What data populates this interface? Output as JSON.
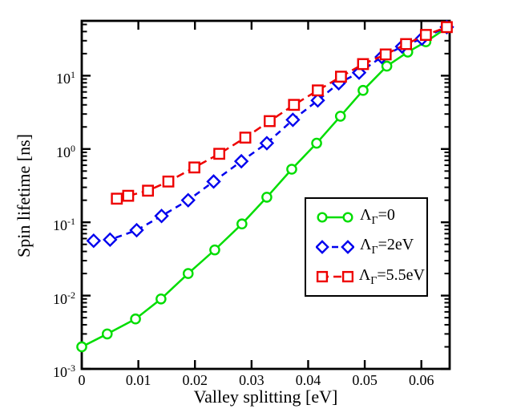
{
  "figure": {
    "background": "#ffffff"
  },
  "chart_data": {
    "type": "line",
    "title": "",
    "xlabel": "Valley splitting [eV]",
    "ylabel": "Spin lifetime [ns]",
    "xlim": [
      0,
      0.065
    ],
    "ylim": [
      0.001,
      56
    ],
    "yscale": "log",
    "xscale": "linear",
    "grid": false,
    "frame_color": "#000000",
    "x_ticks": {
      "values": [
        0,
        0.01,
        0.02,
        0.03,
        0.04,
        0.05,
        0.06
      ],
      "labels": [
        "0",
        "0.01",
        "0.02",
        "0.03",
        "0.04",
        "0.05",
        "0.06"
      ]
    },
    "y_ticks": {
      "base": "10",
      "exponents": [
        -3,
        -2,
        -1,
        0,
        1
      ]
    },
    "legend": {
      "position": "inside-bottom-right"
    },
    "series": [
      {
        "id": "lambda-0",
        "color": "#00dd00",
        "marker": "circle",
        "dash": "",
        "label_parts": [
          {
            "t": "Λ"
          },
          {
            "t": "Γ",
            "sub": true
          },
          {
            "t": "=0"
          }
        ],
        "points": [
          [
            0.0,
            0.002
          ],
          [
            0.0045,
            0.003
          ],
          [
            0.0095,
            0.0048
          ],
          [
            0.014,
            0.009
          ],
          [
            0.0188,
            0.02
          ],
          [
            0.0235,
            0.042
          ],
          [
            0.0283,
            0.095
          ],
          [
            0.0327,
            0.22
          ],
          [
            0.0371,
            0.53
          ],
          [
            0.0415,
            1.2
          ],
          [
            0.0457,
            2.8
          ],
          [
            0.0497,
            6.3
          ],
          [
            0.0539,
            13.5
          ],
          [
            0.0576,
            21
          ],
          [
            0.0608,
            29
          ],
          [
            0.0645,
            45
          ]
        ]
      },
      {
        "id": "lambda-2ev",
        "color": "#0000ee",
        "marker": "diamond",
        "dash": "8 6",
        "label_parts": [
          {
            "t": "Λ"
          },
          {
            "t": "Γ",
            "sub": true
          },
          {
            "t": "=2eV"
          }
        ],
        "points": [
          [
            0.0021,
            0.056
          ],
          [
            0.005,
            0.058
          ],
          [
            0.0097,
            0.078
          ],
          [
            0.0141,
            0.122
          ],
          [
            0.0188,
            0.2
          ],
          [
            0.0233,
            0.36
          ],
          [
            0.0282,
            0.68
          ],
          [
            0.0327,
            1.2
          ],
          [
            0.0373,
            2.5
          ],
          [
            0.0417,
            4.6
          ],
          [
            0.0454,
            7.9
          ],
          [
            0.049,
            11
          ],
          [
            0.053,
            18
          ],
          [
            0.0566,
            25
          ],
          [
            0.0601,
            32
          ],
          [
            0.0645,
            46
          ]
        ]
      },
      {
        "id": "lambda-5.5ev",
        "color": "#ee0000",
        "marker": "square",
        "dash": "10 6",
        "label_parts": [
          {
            "t": "Λ"
          },
          {
            "t": "Γ",
            "sub": true
          },
          {
            "t": "=5.5eV"
          }
        ],
        "points": [
          [
            0.0062,
            0.21
          ],
          [
            0.0082,
            0.23
          ],
          [
            0.0117,
            0.27
          ],
          [
            0.0153,
            0.36
          ],
          [
            0.0199,
            0.56
          ],
          [
            0.0243,
            0.86
          ],
          [
            0.0289,
            1.43
          ],
          [
            0.0332,
            2.4
          ],
          [
            0.0375,
            4.0
          ],
          [
            0.0417,
            6.3
          ],
          [
            0.0458,
            9.7
          ],
          [
            0.0497,
            14.4
          ],
          [
            0.0537,
            19.5
          ],
          [
            0.0573,
            27
          ],
          [
            0.0608,
            36
          ],
          [
            0.0645,
            46
          ]
        ]
      }
    ]
  }
}
